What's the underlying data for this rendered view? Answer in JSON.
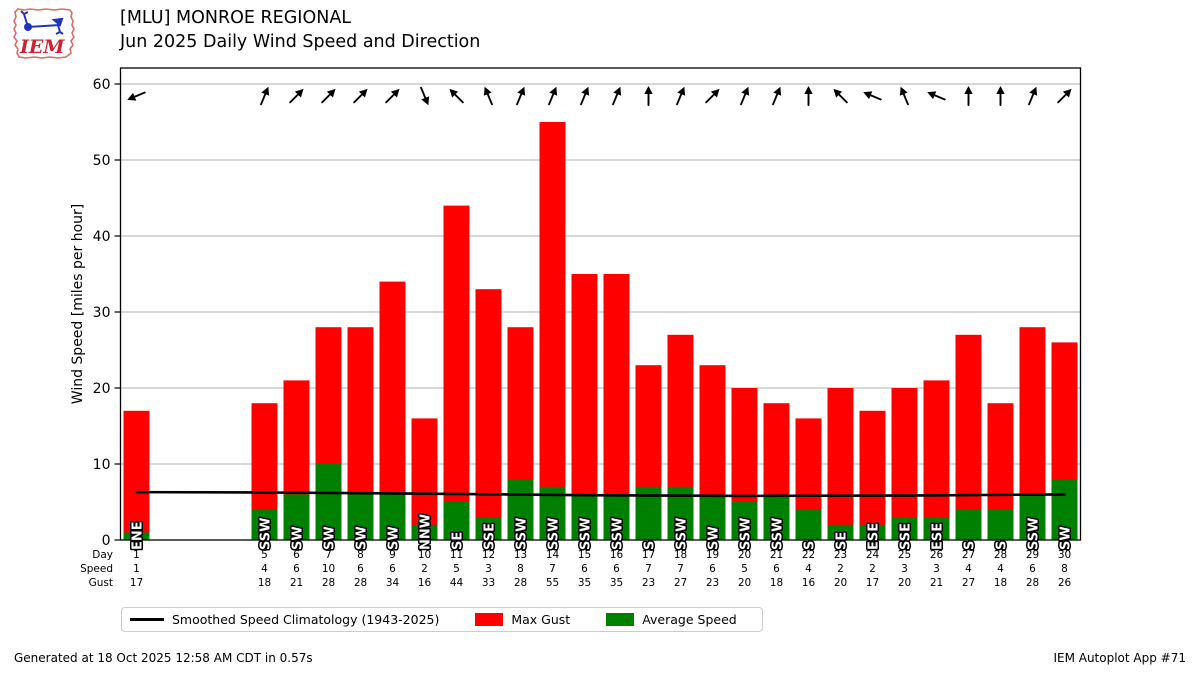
{
  "header": {
    "title_line1": "[MLU] MONROE REGIONAL",
    "title_line2": "Jun 2025 Daily Wind Speed and Direction",
    "logo_text": "IEM"
  },
  "chart_data": {
    "type": "bar",
    "title": "[MLU] MONROE REGIONAL",
    "subtitle": "Jun 2025 Daily Wind Speed and Direction",
    "ylabel": "Wind Speed [miles per hour]",
    "ylim": [
      0,
      62
    ],
    "yticks": [
      0,
      10,
      20,
      30,
      40,
      50,
      60
    ],
    "grid": "horizontal",
    "x_row_labels": {
      "day": "Day",
      "speed": "Speed",
      "gust": "Gust"
    },
    "series": [
      {
        "name": "Max Gust",
        "color": "#ff0000"
      },
      {
        "name": "Average Speed",
        "color": "#008000"
      }
    ],
    "climatology": {
      "name": "Smoothed Speed Climatology (1943-2025)",
      "color": "#000000",
      "points": [
        [
          1,
          6.3
        ],
        [
          5,
          6.25
        ],
        [
          10,
          6.1
        ],
        [
          15,
          5.9
        ],
        [
          20,
          5.8
        ],
        [
          25,
          5.85
        ],
        [
          30,
          6.0
        ]
      ]
    },
    "days": [
      {
        "day": 1,
        "dir": "ENE",
        "speed": 1,
        "gust": 17
      },
      {
        "day": 5,
        "dir": "SSW",
        "speed": 4,
        "gust": 18
      },
      {
        "day": 6,
        "dir": "SW",
        "speed": 6,
        "gust": 21
      },
      {
        "day": 7,
        "dir": "SW",
        "speed": 10,
        "gust": 28
      },
      {
        "day": 8,
        "dir": "SW",
        "speed": 6,
        "gust": 28
      },
      {
        "day": 9,
        "dir": "SW",
        "speed": 6,
        "gust": 34
      },
      {
        "day": 10,
        "dir": "NNW",
        "speed": 2,
        "gust": 16
      },
      {
        "day": 11,
        "dir": "SE",
        "speed": 5,
        "gust": 44
      },
      {
        "day": 12,
        "dir": "SSE",
        "speed": 3,
        "gust": 33
      },
      {
        "day": 13,
        "dir": "SSW",
        "speed": 8,
        "gust": 28
      },
      {
        "day": 14,
        "dir": "SSW",
        "speed": 7,
        "gust": 55
      },
      {
        "day": 15,
        "dir": "SSW",
        "speed": 6,
        "gust": 35
      },
      {
        "day": 16,
        "dir": "SSW",
        "speed": 6,
        "gust": 35
      },
      {
        "day": 17,
        "dir": "S",
        "speed": 7,
        "gust": 23
      },
      {
        "day": 18,
        "dir": "SSW",
        "speed": 7,
        "gust": 27
      },
      {
        "day": 19,
        "dir": "SW",
        "speed": 6,
        "gust": 23
      },
      {
        "day": 20,
        "dir": "SSW",
        "speed": 5,
        "gust": 20
      },
      {
        "day": 21,
        "dir": "SSW",
        "speed": 6,
        "gust": 18
      },
      {
        "day": 22,
        "dir": "S",
        "speed": 4,
        "gust": 16
      },
      {
        "day": 23,
        "dir": "SE",
        "speed": 2,
        "gust": 20
      },
      {
        "day": 24,
        "dir": "ESE",
        "speed": 2,
        "gust": 17
      },
      {
        "day": 25,
        "dir": "SSE",
        "speed": 3,
        "gust": 20
      },
      {
        "day": 26,
        "dir": "ESE",
        "speed": 3,
        "gust": 21
      },
      {
        "day": 27,
        "dir": "S",
        "speed": 4,
        "gust": 27
      },
      {
        "day": 28,
        "dir": "S",
        "speed": 4,
        "gust": 18
      },
      {
        "day": 29,
        "dir": "SSW",
        "speed": 6,
        "gust": 28
      },
      {
        "day": 30,
        "dir": "SW",
        "speed": 8,
        "gust": 26
      }
    ]
  },
  "footer": {
    "left": "Generated at 18 Oct 2025 12:58 AM CDT in 0.57s",
    "right": "IEM Autoplot App #71"
  }
}
